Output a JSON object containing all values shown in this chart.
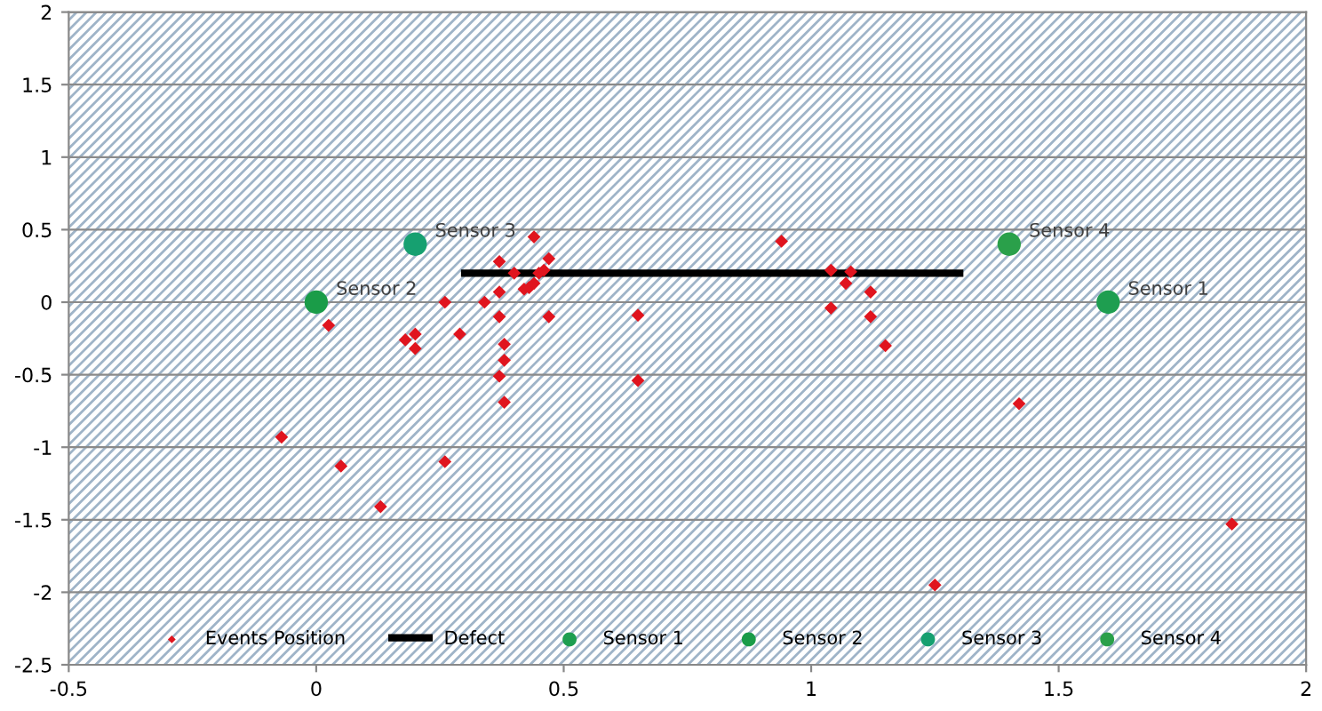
{
  "chart_data": {
    "type": "scatter",
    "xlim": [
      -0.5,
      2
    ],
    "ylim": [
      -2.5,
      2
    ],
    "xticks": [
      -0.5,
      0,
      0.5,
      1,
      1.5,
      2
    ],
    "yticks": [
      -2.5,
      -2,
      -1.5,
      -1,
      -0.5,
      0,
      0.5,
      1,
      1.5,
      2
    ],
    "grid": "y",
    "legend": "bottom",
    "series": [
      {
        "name": "Events Position",
        "marker": "diamond",
        "color": "#e0141e",
        "x": [
          -0.07,
          0.025,
          0.05,
          0.13,
          0.18,
          0.2,
          0.2,
          0.26,
          0.26,
          0.29,
          0.34,
          0.37,
          0.37,
          0.37,
          0.38,
          0.37,
          0.38,
          0.38,
          0.4,
          0.42,
          0.43,
          0.44,
          0.44,
          0.45,
          0.47,
          0.46,
          0.47,
          0.65,
          0.65,
          0.94,
          1.04,
          1.04,
          1.07,
          1.08,
          1.12,
          1.12,
          1.15,
          1.42,
          1.25,
          1.85
        ],
        "values": [
          -0.93,
          -0.16,
          -1.13,
          -1.41,
          -0.26,
          -0.22,
          -0.32,
          -1.1,
          0.0,
          -0.22,
          0.0,
          0.07,
          0.28,
          -0.1,
          -0.4,
          -0.51,
          -0.29,
          -0.69,
          0.2,
          0.09,
          0.1,
          0.13,
          0.45,
          0.2,
          0.3,
          0.22,
          -0.1,
          -0.09,
          -0.54,
          0.42,
          0.22,
          -0.04,
          0.13,
          0.21,
          0.07,
          -0.1,
          -0.3,
          -0.7,
          -1.95,
          -1.53
        ]
      },
      {
        "name": "Defect",
        "type": "line",
        "marker": "none",
        "color": "#000000",
        "x": [
          0.3,
          1.3
        ],
        "values": [
          0.2,
          0.2
        ]
      },
      {
        "name": "Sensor 1",
        "marker": "circle",
        "color": "#1e9e50",
        "x": [
          1.6
        ],
        "values": [
          0
        ]
      },
      {
        "name": "Sensor 2",
        "marker": "circle",
        "color": "#1a9c48",
        "x": [
          0
        ],
        "values": [
          0
        ]
      },
      {
        "name": "Sensor 3",
        "marker": "circle",
        "color": "#16a070",
        "x": [
          0.2
        ],
        "values": [
          0.4
        ]
      },
      {
        "name": "Sensor 4",
        "marker": "circle",
        "color": "#2aa04a",
        "x": [
          1.4
        ],
        "values": [
          0.4
        ]
      }
    ],
    "annotations": [
      {
        "text": "Sensor 1",
        "x": 1.6,
        "y": 0
      },
      {
        "text": "Sensor 2",
        "x": 0,
        "y": 0
      },
      {
        "text": "Sensor 3",
        "x": 0.2,
        "y": 0.4
      },
      {
        "text": "Sensor 4",
        "x": 1.4,
        "y": 0.4
      }
    ]
  }
}
